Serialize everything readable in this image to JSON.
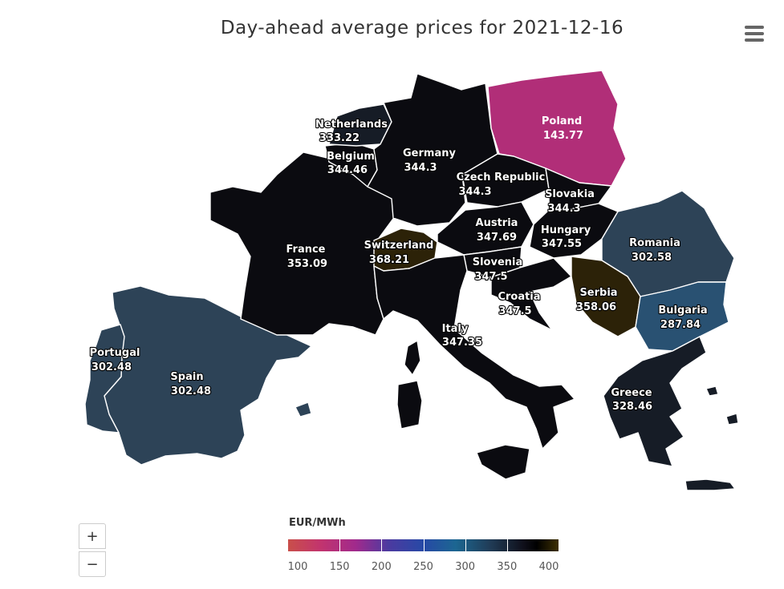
{
  "title": "Day-ahead average prices for 2021-12-16",
  "menu_icon": "hamburger-menu-icon",
  "zoom": {
    "in_label": "+",
    "out_label": "−"
  },
  "legend": {
    "unit": "EUR/MWh",
    "ticks": [
      "100",
      "150",
      "200",
      "250",
      "300",
      "350",
      "400"
    ]
  },
  "colors": {
    "dark": "#0b0b10",
    "poland": "#b12e78",
    "slate": "#2d4357",
    "bulgaria": "#295172",
    "brown": "#2c2208",
    "greece": "#161c26"
  },
  "countries": [
    {
      "name": "Netherlands",
      "price": "333.22"
    },
    {
      "name": "Belgium",
      "price": "344.46"
    },
    {
      "name": "Germany",
      "price": "344.3"
    },
    {
      "name": "Poland",
      "price": "143.77"
    },
    {
      "name": "Czech Republic",
      "price": "344.3"
    },
    {
      "name": "Slovakia",
      "price": "344.3"
    },
    {
      "name": "France",
      "price": "353.09"
    },
    {
      "name": "Switzerland",
      "price": "368.21"
    },
    {
      "name": "Austria",
      "price": "347.69"
    },
    {
      "name": "Hungary",
      "price": "347.55"
    },
    {
      "name": "Romania",
      "price": "302.58"
    },
    {
      "name": "Slovenia",
      "price": "347.5"
    },
    {
      "name": "Croatia",
      "price": "347.5"
    },
    {
      "name": "Serbia",
      "price": "358.06"
    },
    {
      "name": "Bulgaria",
      "price": "287.84"
    },
    {
      "name": "Italy",
      "price": "347.35"
    },
    {
      "name": "Portugal",
      "price": "302.48"
    },
    {
      "name": "Spain",
      "price": "302.48"
    },
    {
      "name": "Greece",
      "price": "328.46"
    }
  ]
}
